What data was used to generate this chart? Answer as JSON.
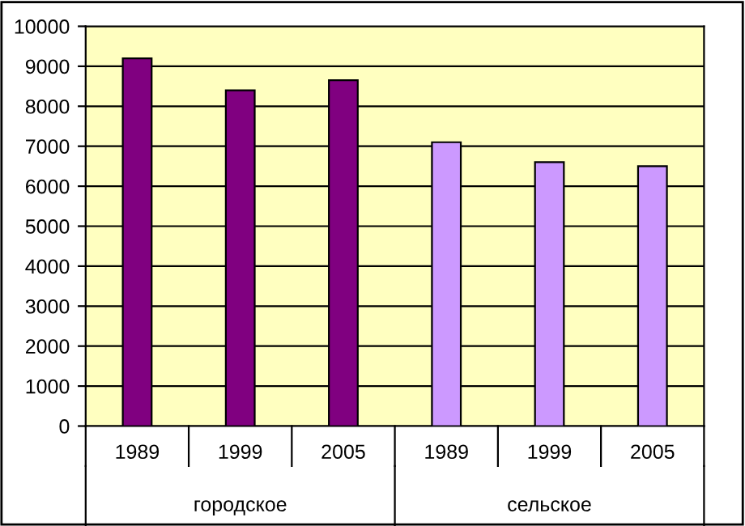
{
  "chart_data": {
    "type": "bar",
    "categories": [
      "1989",
      "1999",
      "2005",
      "1989",
      "1999",
      "2005"
    ],
    "values": [
      9200,
      8400,
      8650,
      7100,
      6600,
      6500
    ],
    "colors": [
      "#800080",
      "#800080",
      "#800080",
      "#cc99ff",
      "#cc99ff",
      "#cc99ff"
    ],
    "annotations": [
      "городское",
      "сельское"
    ],
    "ylim": [
      0,
      10000
    ],
    "yticks": [
      0,
      1000,
      2000,
      3000,
      4000,
      5000,
      6000,
      7000,
      8000,
      9000,
      10000
    ],
    "grid": "y",
    "legend": false
  }
}
